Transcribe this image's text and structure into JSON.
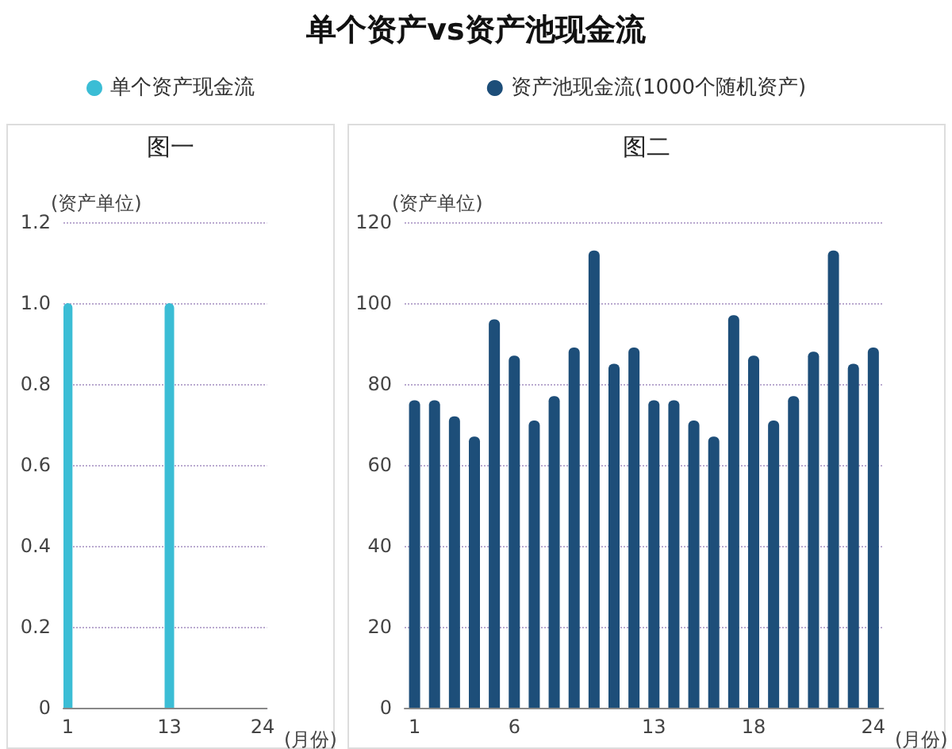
{
  "chart_data": [
    {
      "type": "bar",
      "title": "图一",
      "annotations": [
        "单个资产vs资产池现金流"
      ],
      "xlabel": "(月份)",
      "ylabel": "(资产单位)",
      "categories": [
        "1",
        null,
        null,
        null,
        null,
        null,
        null,
        null,
        null,
        null,
        null,
        null,
        "13",
        null,
        null,
        null,
        null,
        null,
        null,
        null,
        null,
        null,
        null,
        "24"
      ],
      "series": [
        {
          "name": "单个资产现金流",
          "color": "#3bbdd5",
          "values": [
            1,
            0,
            0,
            0,
            0,
            0,
            0,
            0,
            0,
            0,
            0,
            0,
            1,
            0,
            0,
            0,
            0,
            0,
            0,
            0,
            0,
            0,
            0,
            0
          ]
        }
      ],
      "ylim": [
        0,
        1.2
      ],
      "yticks": [
        0,
        0.2,
        0.4,
        0.6,
        0.8,
        {
          "value": 1,
          "label": "1.0"
        },
        1.2
      ],
      "grid": "y",
      "legend": "top"
    },
    {
      "type": "bar",
      "title": "图二",
      "xlabel": "(月份)",
      "ylabel": "(资产单位)",
      "categories": [
        "1",
        null,
        null,
        null,
        null,
        "6",
        null,
        null,
        null,
        null,
        null,
        null,
        "13",
        null,
        null,
        null,
        null,
        "18",
        null,
        null,
        null,
        null,
        null,
        "24"
      ],
      "series": [
        {
          "name": "资产池现金流(1000个随机资产)",
          "color": "#1d4e79",
          "values": [
            76,
            76,
            72,
            67,
            96,
            87,
            71,
            77,
            89,
            113,
            85,
            89,
            76,
            76,
            71,
            67,
            97,
            87,
            71,
            77,
            88,
            113,
            85,
            89
          ]
        }
      ],
      "ylim": [
        0,
        120
      ],
      "yticks": [
        0,
        20,
        40,
        60,
        80,
        100,
        120
      ],
      "grid": "y",
      "legend": "top"
    }
  ]
}
